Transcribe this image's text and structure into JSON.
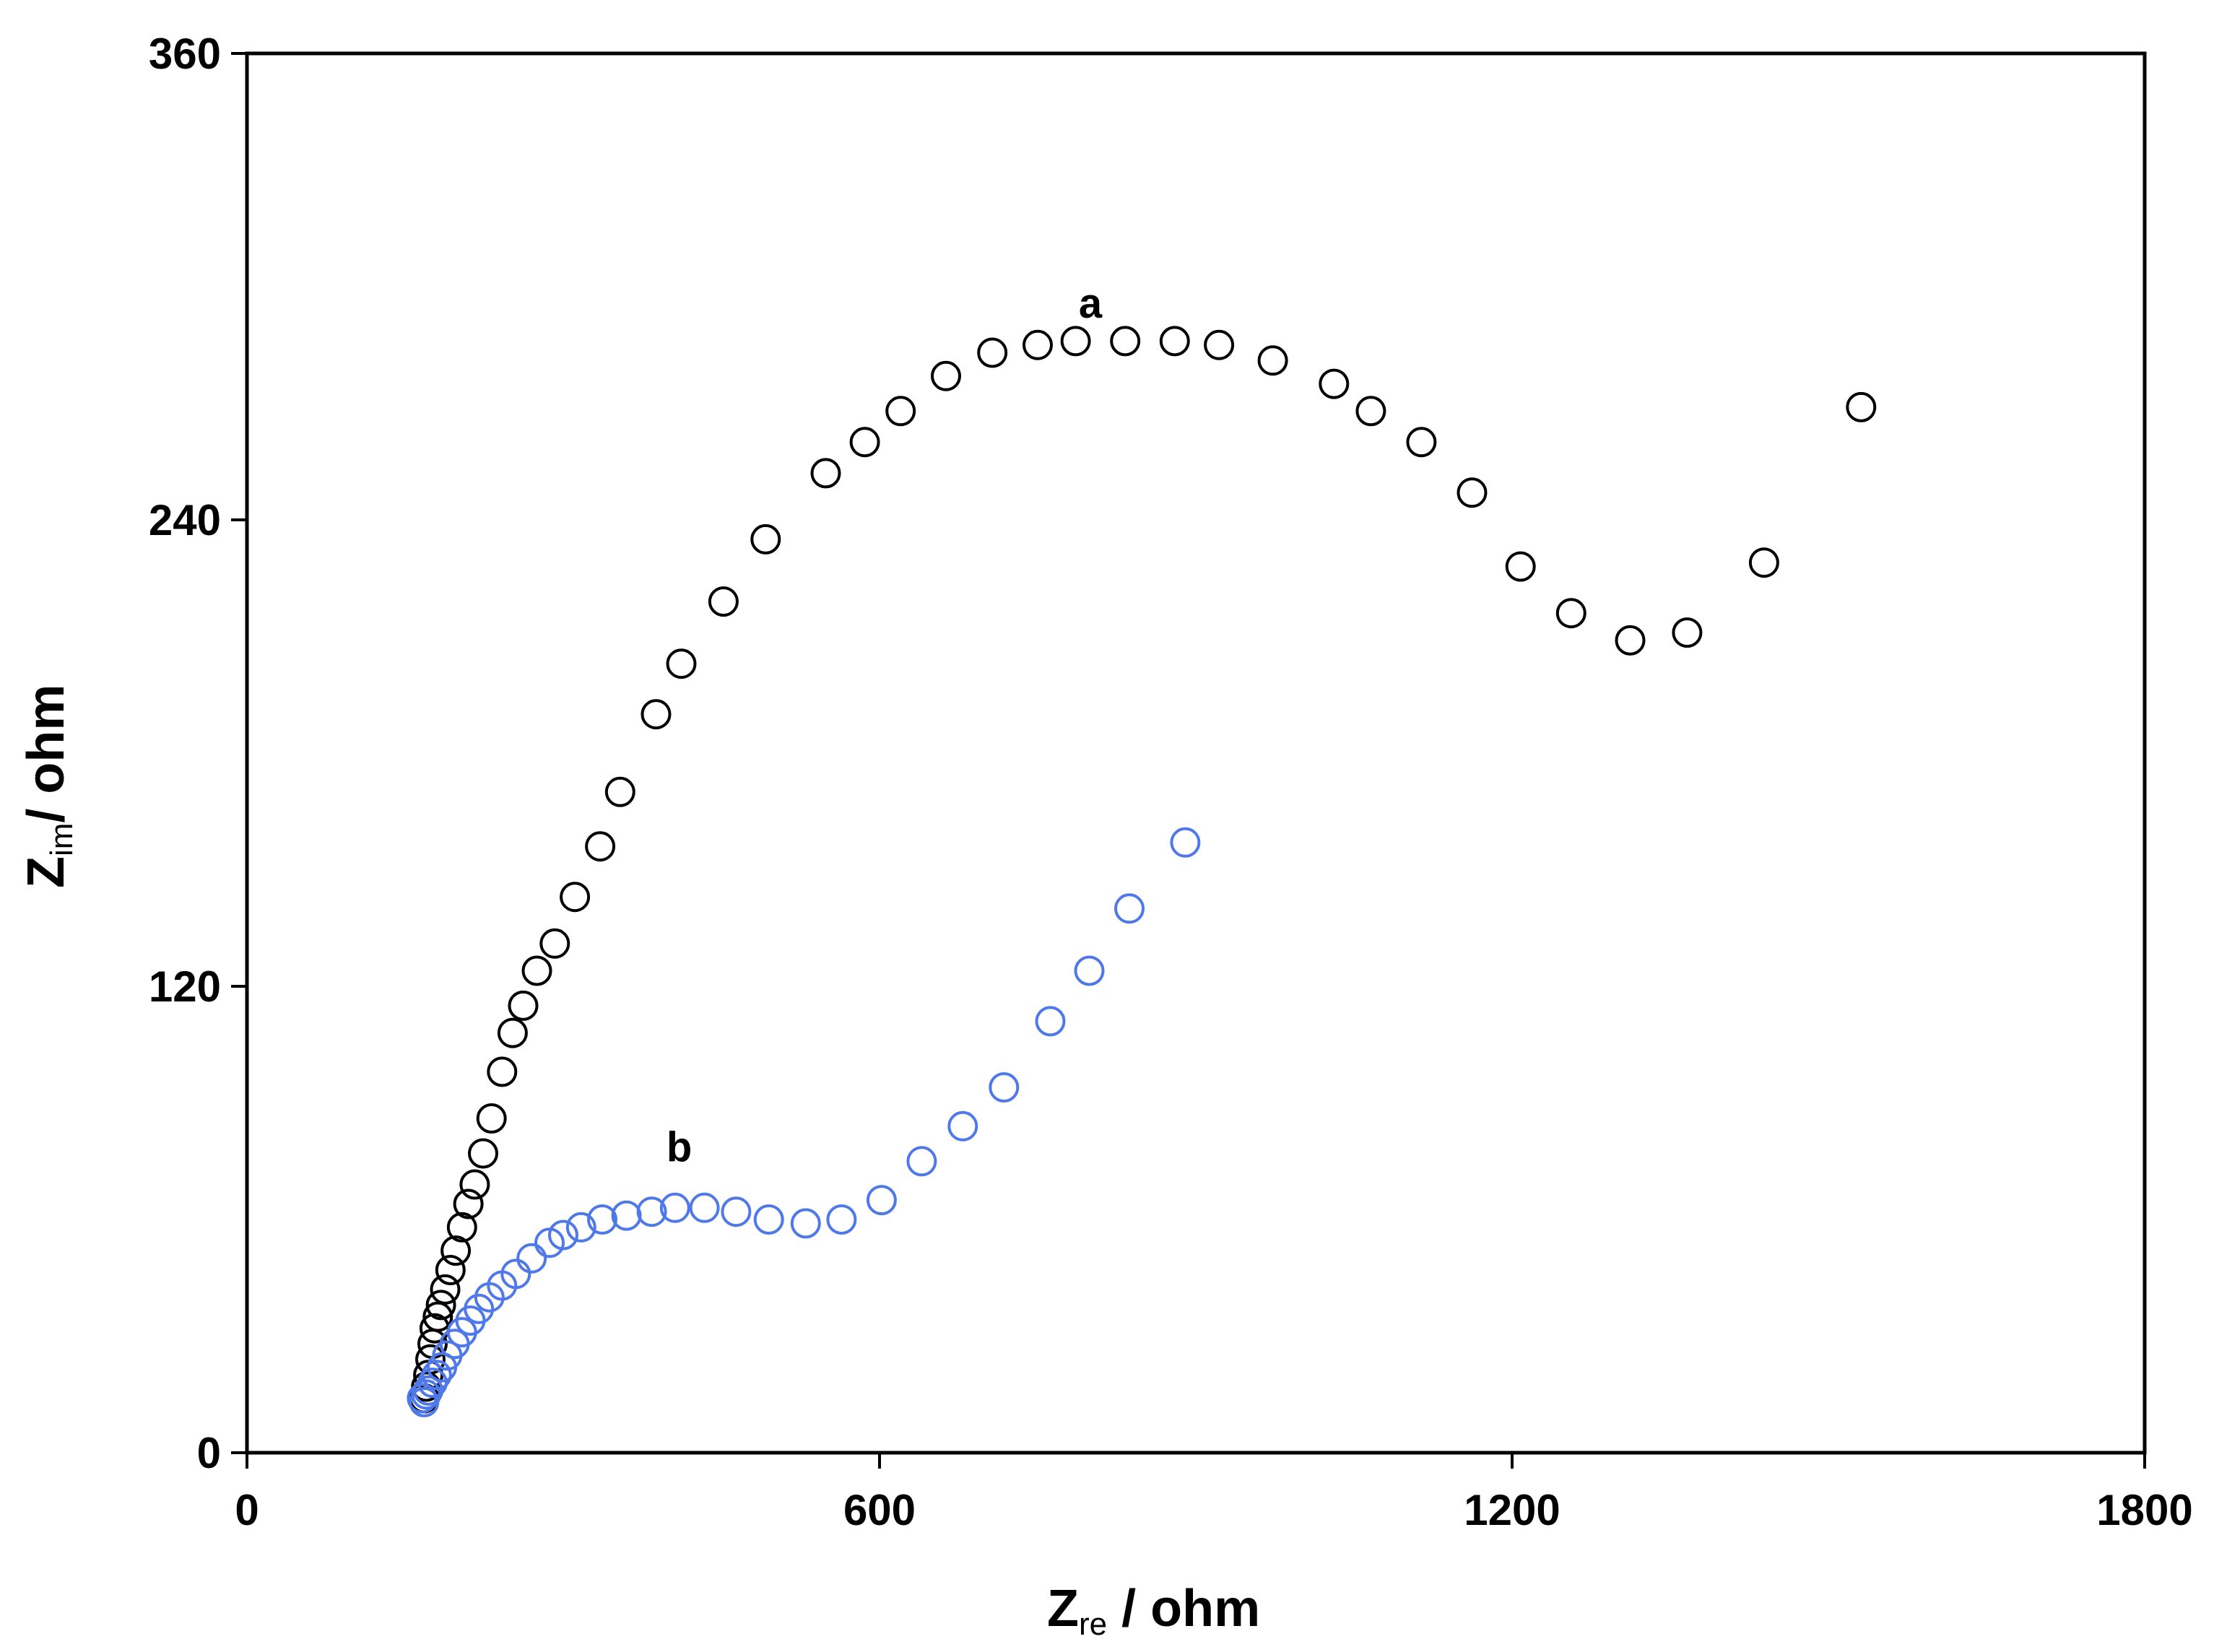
{
  "chart_data": {
    "type": "scatter",
    "title": "",
    "x_axis": {
      "label_main": "Z",
      "label_sub": "re",
      "label_rest": " / ohm",
      "range": [
        0,
        1800
      ],
      "ticks": [
        0,
        600,
        1200,
        1800
      ],
      "tick_labels": [
        "0",
        "600",
        "1200",
        "1800"
      ]
    },
    "y_axis": {
      "label_main": "Z",
      "label_sub": "im",
      "label_rest": "/ ohm",
      "range": [
        0,
        360
      ],
      "ticks": [
        0,
        120,
        240,
        360
      ],
      "tick_labels": [
        "0",
        "120",
        "240",
        "360"
      ]
    },
    "grid": false,
    "legend": "none",
    "marker": "open-circle",
    "series": [
      {
        "name": "a",
        "color": "#000000",
        "label_x": 800,
        "label_y": 292,
        "points": [
          [
            168,
            14
          ],
          [
            170,
            17
          ],
          [
            172,
            20
          ],
          [
            174,
            24
          ],
          [
            176,
            28
          ],
          [
            178,
            32
          ],
          [
            181,
            35
          ],
          [
            184,
            38
          ],
          [
            188,
            42
          ],
          [
            193,
            47
          ],
          [
            198,
            52
          ],
          [
            204,
            58
          ],
          [
            210,
            64
          ],
          [
            216,
            69
          ],
          [
            224,
            77
          ],
          [
            232,
            86
          ],
          [
            242,
            98
          ],
          [
            252,
            108
          ],
          [
            262,
            115
          ],
          [
            275,
            124
          ],
          [
            292,
            131
          ],
          [
            311,
            143
          ],
          [
            335,
            156
          ],
          [
            354,
            170
          ],
          [
            388,
            190
          ],
          [
            412,
            203
          ],
          [
            452,
            219
          ],
          [
            492,
            235
          ],
          [
            549,
            252
          ],
          [
            586,
            260
          ],
          [
            620,
            268
          ],
          [
            663,
            277
          ],
          [
            707,
            283
          ],
          [
            750,
            285
          ],
          [
            786,
            286
          ],
          [
            833,
            286
          ],
          [
            880,
            286
          ],
          [
            922,
            285
          ],
          [
            973,
            281
          ],
          [
            1031,
            275
          ],
          [
            1066,
            268
          ],
          [
            1114,
            260
          ],
          [
            1162,
            247
          ],
          [
            1208,
            228
          ],
          [
            1256,
            216
          ],
          [
            1312,
            209
          ],
          [
            1366,
            211
          ],
          [
            1439,
            229
          ],
          [
            1531,
            269
          ]
        ]
      },
      {
        "name": "b",
        "color": "#4f79e8",
        "label_x": 410,
        "label_y": 75,
        "points": [
          [
            166,
            14
          ],
          [
            168,
            13
          ],
          [
            170,
            15
          ],
          [
            172,
            16
          ],
          [
            176,
            18
          ],
          [
            180,
            20
          ],
          [
            185,
            22
          ],
          [
            190,
            25
          ],
          [
            197,
            28
          ],
          [
            204,
            31
          ],
          [
            212,
            34
          ],
          [
            220,
            37
          ],
          [
            230,
            40
          ],
          [
            242,
            43
          ],
          [
            255,
            46
          ],
          [
            270,
            50
          ],
          [
            287,
            54
          ],
          [
            300,
            56
          ],
          [
            317,
            58
          ],
          [
            337,
            60
          ],
          [
            360,
            61
          ],
          [
            384,
            62
          ],
          [
            406,
            63
          ],
          [
            434,
            63
          ],
          [
            464,
            62
          ],
          [
            495,
            60
          ],
          [
            530,
            59
          ],
          [
            564,
            60
          ],
          [
            602,
            65
          ],
          [
            640,
            75
          ],
          [
            679,
            84
          ],
          [
            718,
            94
          ],
          [
            762,
            111
          ],
          [
            799,
            124
          ],
          [
            837,
            140
          ],
          [
            890,
            157
          ]
        ]
      }
    ]
  }
}
